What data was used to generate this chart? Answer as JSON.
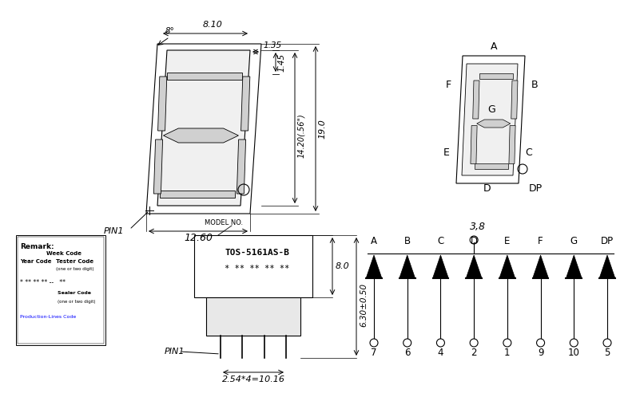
{
  "bg_color": "#ffffff",
  "lc": "#000000",
  "fig_width": 8.01,
  "fig_height": 4.98,
  "top_display": {
    "dim_8deg": "8°",
    "dim_810": "8.10",
    "dim_135": "1.35",
    "dim_145": "1.45",
    "dim_1420": "14.20(.56\")",
    "dim_190": "19.0",
    "dim_1260": "12.60",
    "pin1_label": "PIN1"
  },
  "bottom_left": {
    "model_label": "MODEL NO.",
    "model_name": "TOS-5161AS-B",
    "stars": "* ** ** ** **",
    "pin1_label": "PIN1",
    "dim_254": "2.54*4=10.16",
    "dim_80": "8.0",
    "dim_630": "6.30±0.50",
    "remark_title": "Remark:",
    "remark_week": "Week Code",
    "remark_year": "Year Code",
    "remark_tester": "Tester Code",
    "remark_one_two": "(one or two digit)",
    "remark_sealer": "Sealer Code",
    "remark_sealer2": "(one or two digit)",
    "remark_prod": "Production-Lines Code"
  },
  "pin_diagram": {
    "pins": [
      "A",
      "B",
      "C",
      "D",
      "E",
      "F",
      "G",
      "DP"
    ],
    "numbers": [
      "7",
      "6",
      "4",
      "2",
      "1",
      "9",
      "10",
      "5"
    ],
    "common_label": "3,8"
  }
}
